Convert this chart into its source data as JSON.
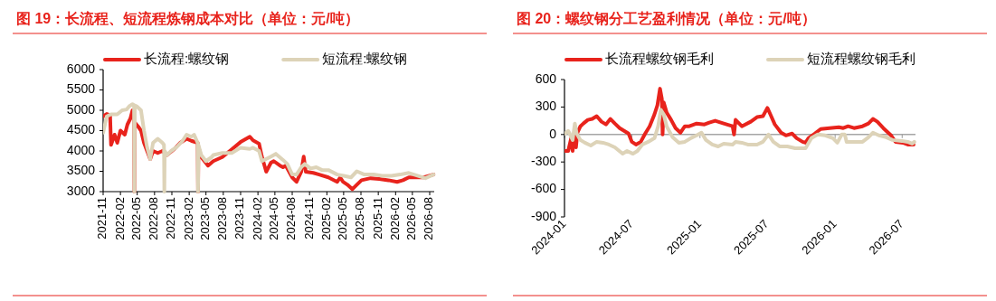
{
  "chart_data": [
    {
      "type": "line",
      "title": "图 19：长流程、短流程炼钢成本对比（单位：元/吨）",
      "legend": "top",
      "grid": false,
      "xlim": [
        "2021-11-01",
        "2026-08-25"
      ],
      "xticks": [
        "2021-11",
        "2022-02",
        "2022-05",
        "2022-08",
        "2022-11",
        "2023-02",
        "2023-05",
        "2023-08",
        "2023-11",
        "2024-02",
        "2024-05",
        "2024-08",
        "2024-11",
        "2025-02",
        "2025-05",
        "2025-08",
        "2025-11",
        "2026-02",
        "2026-05",
        "2026-08"
      ],
      "ylim": [
        3000,
        6000
      ],
      "yticks": [
        3000,
        3500,
        4000,
        4500,
        5000,
        5500,
        6000
      ],
      "series": [
        {
          "name": "长流程:螺纹钢",
          "color": "#e8231c",
          "x": [
            "2021-11-01",
            "2021-11-20",
            "2021-12-08",
            "2021-12-13",
            "2022-01-01",
            "2022-01-15",
            "2022-02-01",
            "2022-02-24",
            "2022-03-10",
            "2022-03-26",
            "2022-04-06",
            "2022-04-14",
            "2022-04-16",
            "2022-04-18",
            "2022-05-06",
            "2022-05-21",
            "2022-06-06",
            "2022-07-09",
            "2022-07-24",
            "2022-08-18",
            "2022-09-12",
            "2022-10-06",
            "2022-11-15",
            "2022-12-15",
            "2023-01-18",
            "2023-02-12",
            "2023-03-18",
            "2023-03-20",
            "2023-03-22",
            "2023-04-06",
            "2023-05-12",
            "2023-06-09",
            "2023-07-27",
            "2023-09-15",
            "2023-11-01",
            "2023-12-20",
            "2024-01-06",
            "2024-02-07",
            "2024-02-22",
            "2024-03-16",
            "2024-04-10",
            "2024-04-25",
            "2024-05-28",
            "2024-06-13",
            "2024-06-28",
            "2024-08-01",
            "2024-08-24",
            "2024-09-18",
            "2024-10-01",
            "2024-10-12",
            "2024-11-21",
            "2024-12-22",
            "2025-02-09",
            "2025-03-28",
            "2025-04-13",
            "2025-04-28",
            "2025-05-21",
            "2025-06-16",
            "2025-07-10",
            "2025-08-04",
            "2025-09-21",
            "2025-11-06",
            "2025-12-25",
            "2026-02-09",
            "2026-03-12",
            "2026-04-12",
            "2026-05-28",
            "2026-06-30",
            "2026-08-21"
          ],
          "values": [
            4850,
            4910,
            4880,
            4150,
            4400,
            4200,
            4500,
            4400,
            4650,
            4800,
            5000,
            4900,
            3000,
            4700,
            4600,
            4500,
            4200,
            3800,
            4000,
            3950,
            4000,
            3900,
            4050,
            4200,
            4300,
            4250,
            4200,
            3000,
            4100,
            3850,
            3640,
            3750,
            3850,
            4040,
            4220,
            4350,
            4260,
            4180,
            3860,
            3490,
            3710,
            3750,
            3640,
            3600,
            3640,
            3350,
            3240,
            3490,
            3860,
            3490,
            3460,
            3420,
            3350,
            3240,
            3350,
            3240,
            3170,
            3060,
            3170,
            3280,
            3330,
            3310,
            3280,
            3240,
            3280,
            3350,
            3350,
            3350,
            3420
          ]
        },
        {
          "name": "短流程:螺纹钢",
          "color": "#ddd3b8",
          "x": [
            "2021-11-01",
            "2021-11-20",
            "2021-12-13",
            "2022-01-15",
            "2022-02-10",
            "2022-03-06",
            "2022-03-20",
            "2022-04-06",
            "2022-04-14",
            "2022-04-16",
            "2022-04-18",
            "2022-04-28",
            "2022-05-21",
            "2022-06-06",
            "2022-06-22",
            "2022-07-09",
            "2022-07-24",
            "2022-08-18",
            "2022-09-12",
            "2022-09-20",
            "2022-09-22",
            "2022-09-24",
            "2022-10-06",
            "2022-10-28",
            "2022-11-28",
            "2022-12-28",
            "2023-01-18",
            "2023-02-12",
            "2023-02-27",
            "2023-03-18",
            "2023-03-20",
            "2023-03-22",
            "2023-04-06",
            "2023-05-01",
            "2023-06-01",
            "2023-06-09",
            "2023-07-27",
            "2023-09-15",
            "2023-11-01",
            "2023-12-20",
            "2024-01-06",
            "2024-02-07",
            "2024-02-22",
            "2024-04-10",
            "2024-05-06",
            "2024-06-13",
            "2024-07-06",
            "2024-08-01",
            "2024-08-24",
            "2024-09-18",
            "2024-10-06",
            "2024-11-06",
            "2024-12-07",
            "2025-01-06",
            "2025-02-09",
            "2025-03-28",
            "2025-05-02",
            "2025-06-09",
            "2025-07-10",
            "2025-08-19",
            "2025-10-07",
            "2025-11-21",
            "2026-01-10",
            "2026-02-25",
            "2026-04-12",
            "2026-05-28",
            "2026-07-09",
            "2026-08-21"
          ],
          "values": [
            4450,
            4850,
            4900,
            4900,
            5000,
            5020,
            5100,
            5150,
            5130,
            3000,
            5120,
            5100,
            5000,
            4500,
            4100,
            3800,
            4200,
            4300,
            4200,
            4150,
            3000,
            4000,
            3900,
            4000,
            4100,
            4250,
            4400,
            4350,
            4400,
            4200,
            3000,
            4150,
            3900,
            3750,
            3850,
            3900,
            3950,
            3950,
            4080,
            4050,
            4080,
            4000,
            3750,
            3860,
            3930,
            3780,
            3680,
            3420,
            3420,
            3600,
            3680,
            3570,
            3600,
            3530,
            3530,
            3420,
            3390,
            3350,
            3500,
            3420,
            3420,
            3390,
            3390,
            3420,
            3460,
            3390,
            3330,
            3420
          ]
        }
      ]
    },
    {
      "type": "line",
      "title": "图 20：螺纹钢分工艺盈利情况（单位：元/吨）",
      "legend": "top",
      "grid": false,
      "xlim": [
        "2024-01-01",
        "2026-08-06"
      ],
      "xticks": [
        "2024-01",
        "2024-07",
        "2025-01",
        "2025-07",
        "2026-01",
        "2026-07"
      ],
      "ylim": [
        -900,
        600
      ],
      "yticks": [
        -900,
        -600,
        -300,
        0,
        300,
        600
      ],
      "ref_lines": [
        {
          "axis": "y",
          "value": 0,
          "color": "#a6a6a6"
        }
      ],
      "series": [
        {
          "name": "长流程螺纹钢毛利",
          "color": "#e8231c",
          "x": [
            "2024-01-03",
            "2024-01-11",
            "2024-01-19",
            "2024-01-23",
            "2024-01-27",
            "2024-02-01",
            "2024-02-05",
            "2024-02-13",
            "2024-02-21",
            "2024-03-04",
            "2024-03-16",
            "2024-03-28",
            "2024-04-10",
            "2024-04-22",
            "2024-05-04",
            "2024-05-16",
            "2024-05-29",
            "2024-06-10",
            "2024-06-22",
            "2024-07-01",
            "2024-07-12",
            "2024-07-25",
            "2024-08-06",
            "2024-08-18",
            "2024-08-31",
            "2024-09-08",
            "2024-09-15",
            "2024-09-20",
            "2024-09-22",
            "2024-09-25",
            "2024-10-03",
            "2024-10-15",
            "2024-10-27",
            "2024-11-09",
            "2024-11-21",
            "2024-12-03",
            "2024-12-23",
            "2025-01-13",
            "2025-01-26",
            "2025-02-11",
            "2025-03-06",
            "2025-03-30",
            "2025-04-03",
            "2025-04-07",
            "2025-04-24",
            "2025-05-18",
            "2025-06-04",
            "2025-06-20",
            "2025-07-02",
            "2025-07-10",
            "2025-07-22",
            "2025-08-08",
            "2025-08-21",
            "2025-09-07",
            "2025-09-19",
            "2025-10-05",
            "2025-10-13",
            "2025-10-21",
            "2025-11-07",
            "2025-11-23",
            "2025-12-17",
            "2026-01-11",
            "2026-01-23",
            "2026-02-05",
            "2026-02-21",
            "2026-03-16",
            "2026-04-01",
            "2026-04-13",
            "2026-04-25",
            "2026-05-11",
            "2026-06-01",
            "2026-06-13",
            "2026-07-03",
            "2026-07-16",
            "2026-08-01"
          ],
          "values": [
            -180,
            -180,
            -40,
            -180,
            10,
            -140,
            20,
            90,
            120,
            160,
            170,
            200,
            140,
            110,
            170,
            120,
            70,
            40,
            10,
            -80,
            -110,
            -80,
            10,
            90,
            220,
            320,
            500,
            390,
            0,
            350,
            240,
            160,
            70,
            20,
            90,
            90,
            120,
            110,
            130,
            150,
            120,
            90,
            0,
            160,
            90,
            140,
            190,
            200,
            290,
            220,
            110,
            20,
            -10,
            10,
            -40,
            -80,
            -90,
            -40,
            10,
            60,
            70,
            80,
            70,
            90,
            70,
            90,
            120,
            170,
            140,
            70,
            -10,
            -80,
            -90,
            -110,
            -110
          ]
        },
        {
          "name": "短流程螺纹钢毛利",
          "color": "#ddd3b8",
          "x": [
            "2024-01-03",
            "2024-01-11",
            "2024-01-15",
            "2024-01-23",
            "2024-01-29",
            "2024-02-03",
            "2024-02-13",
            "2024-02-25",
            "2024-03-12",
            "2024-03-28",
            "2024-04-14",
            "2024-04-30",
            "2024-05-16",
            "2024-06-06",
            "2024-06-18",
            "2024-07-04",
            "2024-07-16",
            "2024-07-29",
            "2024-08-14",
            "2024-08-31",
            "2024-09-10",
            "2024-09-17",
            "2024-09-25",
            "2024-10-03",
            "2024-10-19",
            "2024-11-05",
            "2024-11-21",
            "2024-12-07",
            "2024-12-23",
            "2025-01-05",
            "2025-01-17",
            "2025-02-03",
            "2025-02-19",
            "2025-03-06",
            "2025-03-30",
            "2025-04-07",
            "2025-04-24",
            "2025-05-10",
            "2025-06-04",
            "2025-06-20",
            "2025-07-05",
            "2025-07-18",
            "2025-08-04",
            "2025-08-25",
            "2025-09-15",
            "2025-10-13",
            "2025-10-29",
            "2025-11-15",
            "2025-12-05",
            "2025-12-26",
            "2026-01-07",
            "2026-01-19",
            "2026-01-27",
            "2026-02-01",
            "2026-02-21",
            "2026-03-16",
            "2026-04-01",
            "2026-04-13",
            "2026-04-29",
            "2026-05-19",
            "2026-06-05",
            "2026-06-30",
            "2026-07-16",
            "2026-07-28",
            "2026-08-03"
          ],
          "values": [
            10,
            40,
            10,
            -60,
            120,
            10,
            -60,
            -90,
            -120,
            -80,
            -90,
            -110,
            -140,
            -210,
            -180,
            -210,
            -180,
            -110,
            -80,
            -40,
            90,
            270,
            220,
            90,
            -30,
            -90,
            -80,
            -40,
            -10,
            20,
            -60,
            -110,
            -130,
            -100,
            -110,
            -80,
            -90,
            -110,
            -110,
            -80,
            0,
            -80,
            -130,
            -130,
            -150,
            -150,
            -40,
            0,
            -10,
            -40,
            -90,
            0,
            0,
            -80,
            -80,
            -80,
            -30,
            20,
            -10,
            -30,
            -60,
            -70,
            -80,
            -100,
            -80
          ]
        }
      ]
    }
  ]
}
